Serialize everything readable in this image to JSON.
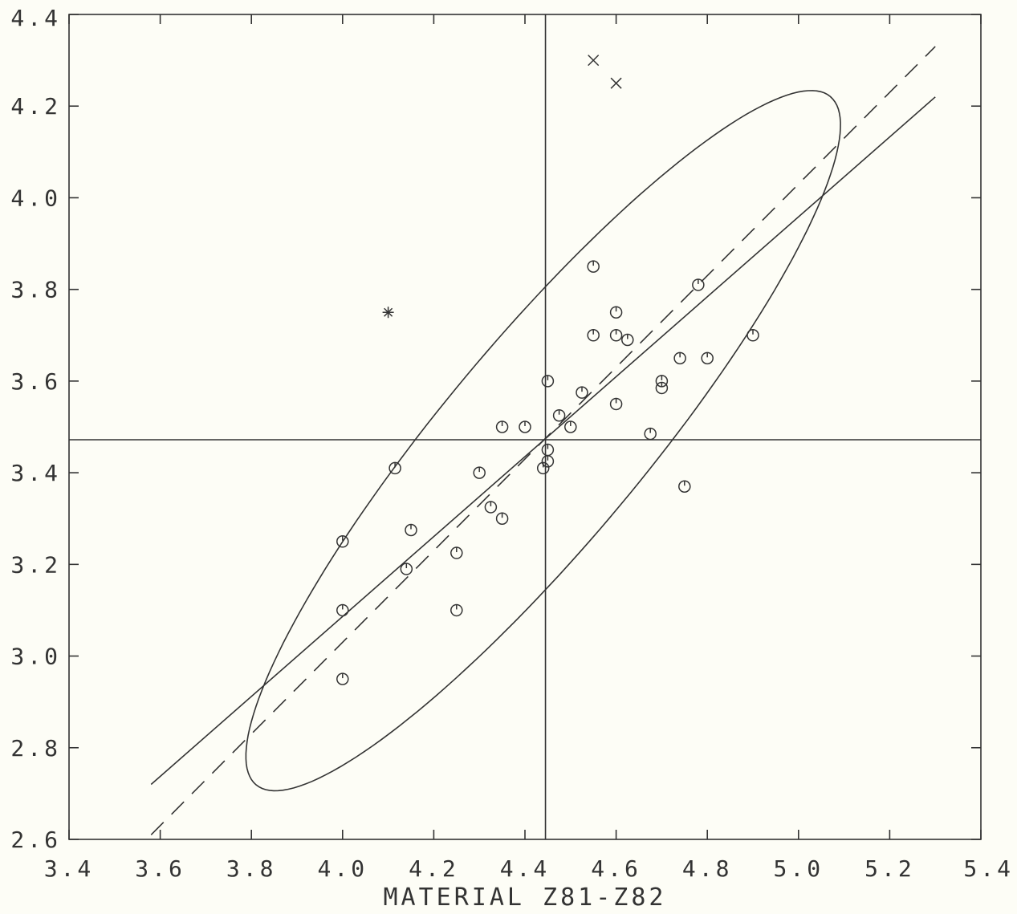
{
  "chart_data": {
    "type": "scatter",
    "title": "",
    "xlabel": "MATERIAL Z81-Z82",
    "ylabel": "",
    "xlim": [
      3.4,
      5.4
    ],
    "ylim": [
      2.6,
      4.4
    ],
    "xticks": [
      3.4,
      3.6,
      3.8,
      4.0,
      4.2,
      4.4,
      4.6,
      4.8,
      5.0,
      5.2,
      5.4
    ],
    "xtick_labels": [
      "3.4",
      "3.6",
      "3.8",
      "4.0",
      "4.2",
      "4.4",
      "4.6",
      "4.8",
      "5.0",
      "5.2",
      "5.4"
    ],
    "yticks": [
      2.6,
      2.8,
      3.0,
      3.2,
      3.4,
      3.6,
      3.8,
      4.0,
      4.2,
      4.4
    ],
    "ytick_labels": [
      "2.6",
      "2.8",
      "3.0",
      "3.2",
      "3.4",
      "3.6",
      "3.8",
      "4.0",
      "4.2",
      "4.4"
    ],
    "grid": false,
    "reference_lines": {
      "x_mean": 4.445,
      "y_mean": 3.472
    },
    "fit_solid": [
      [
        3.58,
        2.72
      ],
      [
        5.3,
        4.22
      ]
    ],
    "fit_dashed": [
      [
        3.58,
        2.61
      ],
      [
        5.3,
        4.33
      ]
    ],
    "ellipse": {
      "cx": 4.44,
      "cy": 3.47,
      "semi_major": 0.98,
      "semi_minor": 0.22,
      "angle_deg": 50
    },
    "series": [
      {
        "marker": "circle",
        "points": [
          [
            4.0,
            2.95
          ],
          [
            4.0,
            3.1
          ],
          [
            4.0,
            3.25
          ],
          [
            4.115,
            3.41
          ],
          [
            4.14,
            3.19
          ],
          [
            4.15,
            3.275
          ],
          [
            4.25,
            3.1
          ],
          [
            4.25,
            3.225
          ],
          [
            4.3,
            3.4
          ],
          [
            4.325,
            3.325
          ],
          [
            4.35,
            3.3
          ],
          [
            4.35,
            3.5
          ],
          [
            4.4,
            3.5
          ],
          [
            4.44,
            3.41
          ],
          [
            4.45,
            3.425
          ],
          [
            4.45,
            3.45
          ],
          [
            4.45,
            3.6
          ],
          [
            4.475,
            3.525
          ],
          [
            4.5,
            3.5
          ],
          [
            4.525,
            3.575
          ],
          [
            4.55,
            3.7
          ],
          [
            4.55,
            3.85
          ],
          [
            4.6,
            3.55
          ],
          [
            4.6,
            3.7
          ],
          [
            4.6,
            3.75
          ],
          [
            4.625,
            3.69
          ],
          [
            4.675,
            3.485
          ],
          [
            4.7,
            3.585
          ],
          [
            4.7,
            3.6
          ],
          [
            4.74,
            3.65
          ],
          [
            4.75,
            3.37
          ],
          [
            4.78,
            3.81
          ],
          [
            4.8,
            3.65
          ],
          [
            4.9,
            3.7
          ]
        ]
      },
      {
        "marker": "x",
        "points": [
          [
            4.55,
            4.3
          ],
          [
            4.6,
            4.25
          ]
        ]
      },
      {
        "marker": "asterisk",
        "points": [
          [
            4.1,
            3.75
          ]
        ]
      }
    ]
  }
}
